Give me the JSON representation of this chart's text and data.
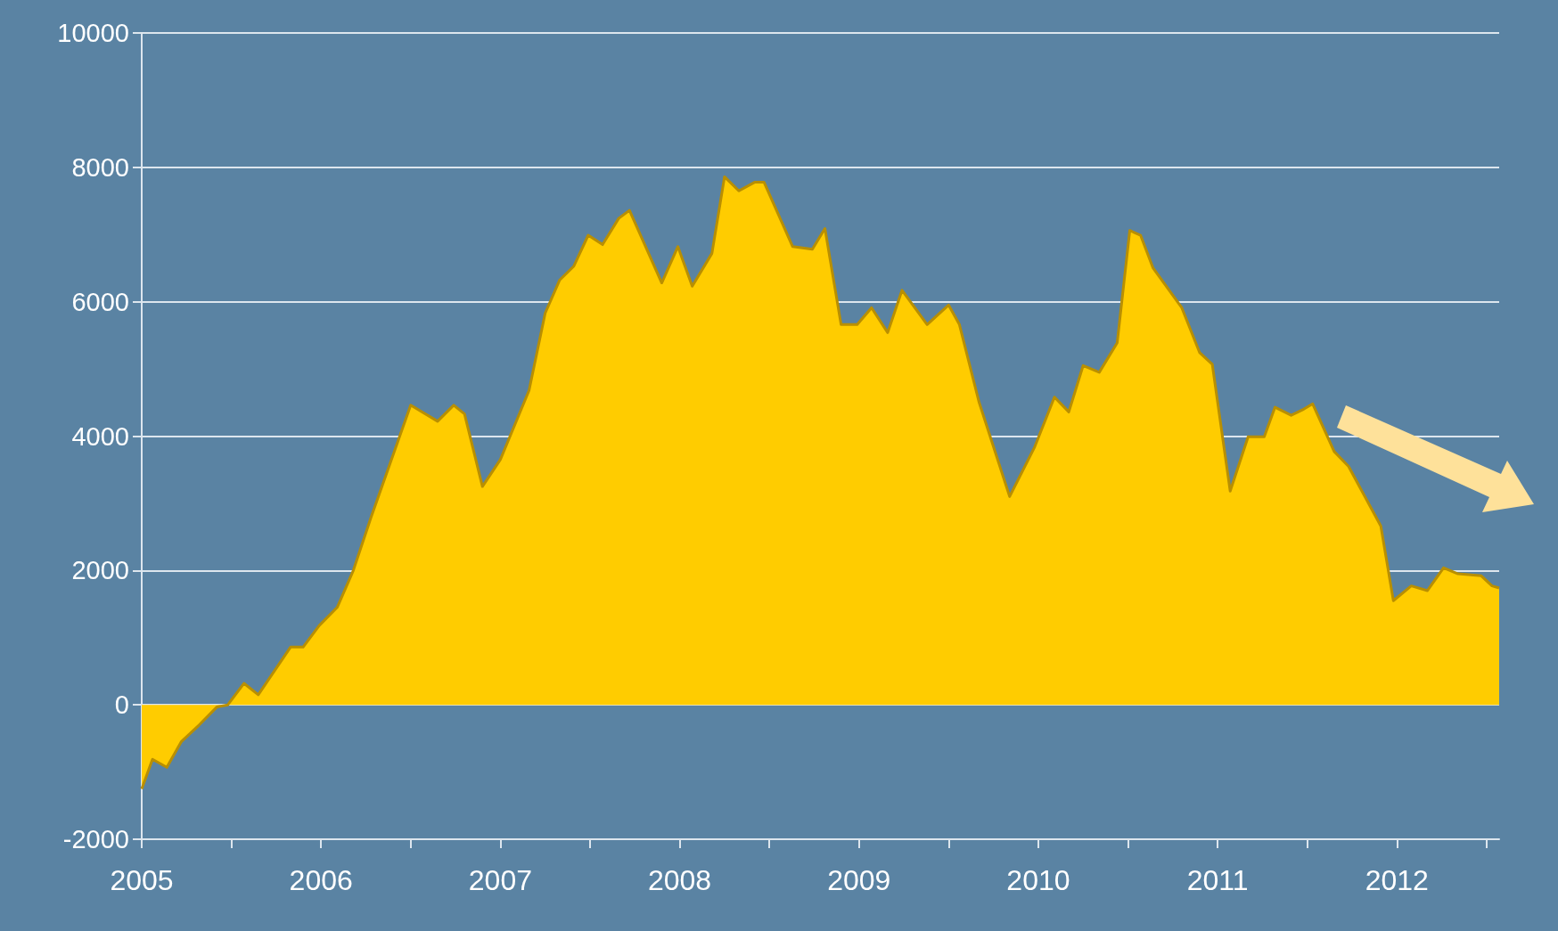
{
  "chart_data": {
    "type": "area",
    "x": [
      2005.0,
      2005.06,
      2005.14,
      2005.22,
      2005.32,
      2005.42,
      2005.48,
      2005.57,
      2005.65,
      2005.83,
      2005.9,
      2005.99,
      2006.09,
      2006.18,
      2006.28,
      2006.5,
      2006.65,
      2006.74,
      2006.8,
      2006.9,
      2007.0,
      2007.16,
      2007.25,
      2007.33,
      2007.41,
      2007.49,
      2007.57,
      2007.66,
      2007.72,
      2007.9,
      2007.99,
      2008.07,
      2008.18,
      2008.25,
      2008.33,
      2008.42,
      2008.47,
      2008.63,
      2008.74,
      2008.81,
      2008.9,
      2008.99,
      2009.07,
      2009.16,
      2009.24,
      2009.38,
      2009.5,
      2009.56,
      2009.67,
      2009.84,
      2009.98,
      2010.09,
      2010.17,
      2010.25,
      2010.34,
      2010.44,
      2010.51,
      2010.57,
      2010.64,
      2010.8,
      2010.9,
      2010.97,
      2011.07,
      2011.17,
      2011.26,
      2011.32,
      2011.41,
      2011.48,
      2011.53,
      2011.65,
      2011.73,
      2011.91,
      2011.98,
      2012.08,
      2012.17,
      2012.26,
      2012.34,
      2012.47,
      2012.53,
      2012.57
    ],
    "series": [
      {
        "color": "#ffcc00",
        "values": [
          -1250,
          -810,
          -930,
          -550,
          -300,
          -30,
          0,
          320,
          150,
          860,
          860,
          1180,
          1450,
          2000,
          2800,
          4460,
          4220,
          4460,
          4330,
          3250,
          3650,
          4680,
          5830,
          6320,
          6530,
          6990,
          6850,
          7240,
          7360,
          6280,
          6820,
          6230,
          6720,
          7860,
          7650,
          7780,
          7780,
          6820,
          6780,
          7090,
          5660,
          5660,
          5910,
          5540,
          6170,
          5660,
          5950,
          5660,
          4500,
          3100,
          3840,
          4580,
          4360,
          5050,
          4950,
          5390,
          7060,
          6990,
          6500,
          5910,
          5240,
          5070,
          3180,
          3990,
          3990,
          4430,
          4310,
          4400,
          4480,
          3770,
          3550,
          2660,
          1550,
          1770,
          1700,
          2040,
          1950,
          1920,
          1770,
          1740
        ]
      }
    ],
    "xlim": [
      2005,
      2012.57
    ],
    "xticks": [
      2005,
      {
        "value": 2005.5,
        "label": null
      },
      2006,
      {
        "value": 2006.5,
        "label": null
      },
      2007,
      {
        "value": 2007.5,
        "label": null
      },
      2008,
      {
        "value": 2008.5,
        "label": null
      },
      2009,
      {
        "value": 2009.5,
        "label": null
      },
      2010,
      {
        "value": 2010.5,
        "label": null
      },
      2011,
      {
        "value": 2011.5,
        "label": null
      },
      2012,
      {
        "value": 2012.5,
        "label": null
      }
    ],
    "ylim": [
      -2000,
      10000
    ],
    "yticks": [
      -2000,
      0,
      2000,
      4000,
      6000,
      8000,
      10000
    ],
    "grid": "y",
    "marker": "none"
  }
}
